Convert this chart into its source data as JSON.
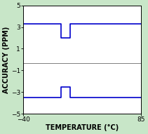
{
  "background_color": "#c8e6c8",
  "plot_bg_color": "#ffffff",
  "line_color": "#0000cc",
  "hline_color": "#808080",
  "hline_y": -0.3,
  "xlim": [
    -40,
    85
  ],
  "ylim": [
    -5,
    5
  ],
  "xticks": [
    -40,
    85
  ],
  "yticks": [
    -5,
    -3,
    -1,
    1,
    3,
    5
  ],
  "xlabel": "TEMPERATURE (°C)",
  "ylabel": "ACCURACY (PPM)",
  "xlabel_fontsize": 7.0,
  "ylabel_fontsize": 7.0,
  "tick_fontsize": 6.5,
  "upper_x": [
    -40,
    0,
    0,
    10,
    10,
    85
  ],
  "upper_y": [
    3.3,
    3.3,
    2.0,
    2.0,
    3.3,
    3.3
  ],
  "lower_x": [
    -40,
    0,
    0,
    10,
    10,
    85
  ],
  "lower_y": [
    -3.5,
    -3.5,
    -2.5,
    -2.5,
    -3.5,
    -3.5
  ],
  "line_width": 1.2
}
